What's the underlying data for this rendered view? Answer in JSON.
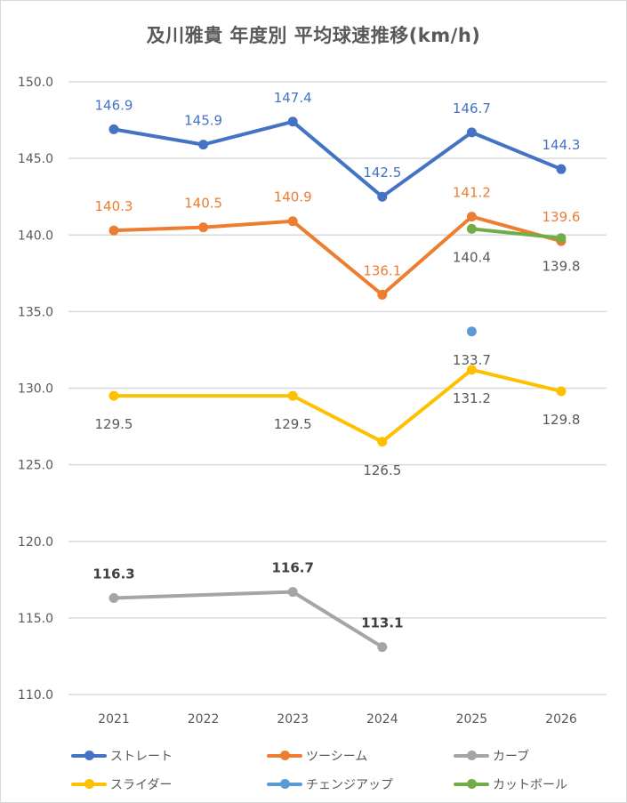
{
  "chart_data": {
    "type": "line",
    "title": "及川雅貴 年度別 平均球速推移(km/h)",
    "xlabel": "",
    "ylabel": "",
    "categories": [
      "2021",
      "2022",
      "2023",
      "2024",
      "2025",
      "2026"
    ],
    "ylim": [
      110.0,
      150.0
    ],
    "yticks": [
      "150.0",
      "145.0",
      "140.0",
      "135.0",
      "130.0",
      "125.0",
      "120.0",
      "115.0",
      "110.0"
    ],
    "ytick_values": [
      150,
      145,
      140,
      135,
      130,
      125,
      120,
      115,
      110
    ],
    "grid": true,
    "legend_position": "bottom",
    "series": [
      {
        "name": "ストレート",
        "color": "#4472C4",
        "label_color": "#4472C4",
        "label_pos": "above",
        "values": [
          146.9,
          145.9,
          147.4,
          142.5,
          146.7,
          144.3
        ],
        "labels": [
          "146.9",
          "145.9",
          "147.4",
          "142.5",
          "146.7",
          "144.3"
        ]
      },
      {
        "name": "ツーシーム",
        "color": "#ED7D31",
        "label_color": "#ED7D31",
        "label_pos": "above",
        "values": [
          140.3,
          140.5,
          140.9,
          136.1,
          141.2,
          139.6
        ],
        "labels": [
          "140.3",
          "140.5",
          "140.9",
          "136.1",
          "141.2",
          "139.6"
        ]
      },
      {
        "name": "カーブ",
        "color": "#A5A5A5",
        "label_color": "#404040",
        "label_pos": "above",
        "values": [
          116.3,
          null,
          116.7,
          113.1,
          null,
          null
        ],
        "labels": [
          "116.3",
          null,
          "116.7",
          "113.1",
          null,
          null
        ]
      },
      {
        "name": "スライダー",
        "color": "#FFC000",
        "label_color": "#595959",
        "label_pos": "below",
        "values": [
          129.5,
          null,
          129.5,
          126.5,
          131.2,
          129.8
        ],
        "labels": [
          "129.5",
          null,
          "129.5",
          "126.5",
          "131.2",
          "129.8"
        ]
      },
      {
        "name": "チェンジアップ",
        "color": "#5B9BD5",
        "label_color": "#595959",
        "label_pos": "below",
        "values": [
          null,
          null,
          null,
          null,
          133.7,
          null
        ],
        "labels": [
          null,
          null,
          null,
          null,
          "133.7",
          null
        ]
      },
      {
        "name": "カットボール",
        "color": "#70AD47",
        "label_color": "#595959",
        "label_pos": "below",
        "values": [
          null,
          null,
          null,
          null,
          140.4,
          139.8
        ],
        "labels": [
          null,
          null,
          null,
          null,
          "140.4",
          "139.8"
        ]
      }
    ]
  }
}
